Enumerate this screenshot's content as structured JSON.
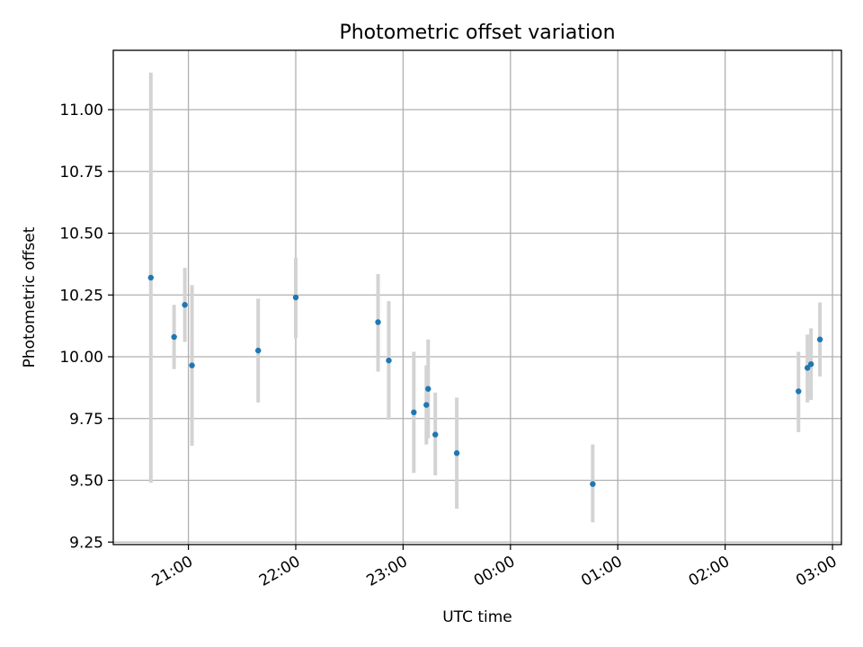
{
  "chart_data": {
    "type": "scatter",
    "title": "Photometric offset variation",
    "xlabel": "UTC time",
    "ylabel": "Photometric offset",
    "x_axis_type": "time",
    "xlim": [
      "20:18",
      "03:05"
    ],
    "ylim": [
      9.24,
      11.24
    ],
    "yticks": [
      9.25,
      9.5,
      9.75,
      10.0,
      10.25,
      10.5,
      10.75,
      11.0
    ],
    "ytick_labels": [
      "9.25",
      "9.50",
      "9.75",
      "10.00",
      "10.25",
      "10.50",
      "10.75",
      "11.00"
    ],
    "xticks": [
      "21:00",
      "22:00",
      "23:00",
      "00:00",
      "01:00",
      "02:00",
      "03:00"
    ],
    "xtick_labels": [
      "21:00",
      "22:00",
      "23:00",
      "00:00",
      "01:00",
      "02:00",
      "03:00"
    ],
    "grid": true,
    "colors": {
      "point": "#1f77b4",
      "errorbar": "#d3d3d3",
      "grid": "#b0b0b0"
    },
    "points": [
      {
        "time": "20:39",
        "y": 10.32,
        "err_low": 9.49,
        "err_high": 11.15
      },
      {
        "time": "20:52",
        "y": 10.08,
        "err_low": 9.95,
        "err_high": 10.21
      },
      {
        "time": "20:58",
        "y": 10.21,
        "err_low": 10.06,
        "err_high": 10.36
      },
      {
        "time": "21:02",
        "y": 9.965,
        "err_low": 9.64,
        "err_high": 10.29
      },
      {
        "time": "21:39",
        "y": 10.025,
        "err_low": 9.815,
        "err_high": 10.235
      },
      {
        "time": "22:00",
        "y": 10.24,
        "err_low": 10.075,
        "err_high": 10.4
      },
      {
        "time": "22:46",
        "y": 10.14,
        "err_low": 9.94,
        "err_high": 10.335
      },
      {
        "time": "22:52",
        "y": 9.985,
        "err_low": 9.745,
        "err_high": 10.225
      },
      {
        "time": "23:06",
        "y": 9.775,
        "err_low": 9.53,
        "err_high": 10.02
      },
      {
        "time": "23:13",
        "y": 9.805,
        "err_low": 9.645,
        "err_high": 9.965
      },
      {
        "time": "23:14",
        "y": 9.87,
        "err_low": 9.67,
        "err_high": 10.07
      },
      {
        "time": "23:18",
        "y": 9.685,
        "err_low": 9.52,
        "err_high": 9.855
      },
      {
        "time": "23:30",
        "y": 9.61,
        "err_low": 9.385,
        "err_high": 9.835
      },
      {
        "time": "00:46",
        "y": 9.485,
        "err_low": 9.33,
        "err_high": 9.645
      },
      {
        "time": "02:41",
        "y": 9.86,
        "err_low": 9.695,
        "err_high": 10.02
      },
      {
        "time": "02:46",
        "y": 9.955,
        "err_low": 9.815,
        "err_high": 10.09
      },
      {
        "time": "02:48",
        "y": 9.97,
        "err_low": 9.825,
        "err_high": 10.115
      },
      {
        "time": "02:53",
        "y": 10.07,
        "err_low": 9.92,
        "err_high": 10.22
      }
    ]
  }
}
